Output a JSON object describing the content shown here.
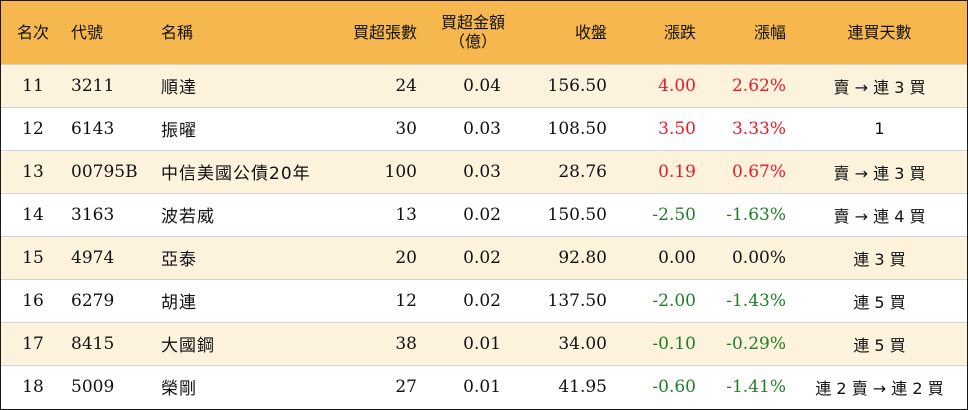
{
  "table": {
    "headers": {
      "rank": "名次",
      "code": "代號",
      "name": "名稱",
      "net_lots": "買超張數",
      "net_amount_line1": "買超金額",
      "net_amount_line2": "（億）",
      "close": "收盤",
      "change": "漲跌",
      "pct": "漲幅",
      "days": "連買天數"
    },
    "rows": [
      {
        "rank": "11",
        "code": "3211",
        "name": "順達",
        "net_lots": "24",
        "net_amount": "0.04",
        "close": "156.50",
        "change": "4.00",
        "pct": "2.62%",
        "direction": "up",
        "days": "賣 → 連 3 買"
      },
      {
        "rank": "12",
        "code": "6143",
        "name": "振曜",
        "net_lots": "30",
        "net_amount": "0.03",
        "close": "108.50",
        "change": "3.50",
        "pct": "3.33%",
        "direction": "up",
        "days": "1"
      },
      {
        "rank": "13",
        "code": "00795B",
        "name": "中信美國公債20年",
        "net_lots": "100",
        "net_amount": "0.03",
        "close": "28.76",
        "change": "0.19",
        "pct": "0.67%",
        "direction": "up",
        "days": "賣 → 連 3 買"
      },
      {
        "rank": "14",
        "code": "3163",
        "name": "波若威",
        "net_lots": "13",
        "net_amount": "0.02",
        "close": "150.50",
        "change": "-2.50",
        "pct": "-1.63%",
        "direction": "down",
        "days": "賣 → 連 4 買"
      },
      {
        "rank": "15",
        "code": "4974",
        "name": "亞泰",
        "net_lots": "20",
        "net_amount": "0.02",
        "close": "92.80",
        "change": "0.00",
        "pct": "0.00%",
        "direction": "flat",
        "days": "連 3 買"
      },
      {
        "rank": "16",
        "code": "6279",
        "name": "胡連",
        "net_lots": "12",
        "net_amount": "0.02",
        "close": "137.50",
        "change": "-2.00",
        "pct": "-1.43%",
        "direction": "down",
        "days": "連 5 買"
      },
      {
        "rank": "17",
        "code": "8415",
        "name": "大國鋼",
        "net_lots": "38",
        "net_amount": "0.01",
        "close": "34.00",
        "change": "-0.10",
        "pct": "-0.29%",
        "direction": "down",
        "days": "連 5 買"
      },
      {
        "rank": "18",
        "code": "5009",
        "name": "榮剛",
        "net_lots": "27",
        "net_amount": "0.01",
        "close": "41.95",
        "change": "-0.60",
        "pct": "-1.41%",
        "direction": "down",
        "days": "連 2 賣 → 連 2 買"
      }
    ]
  },
  "colors": {
    "header_bg": "#f6b84e",
    "stripe_bg": "#fdf2dc",
    "up": "#e8192c",
    "down": "#1e7f28"
  }
}
